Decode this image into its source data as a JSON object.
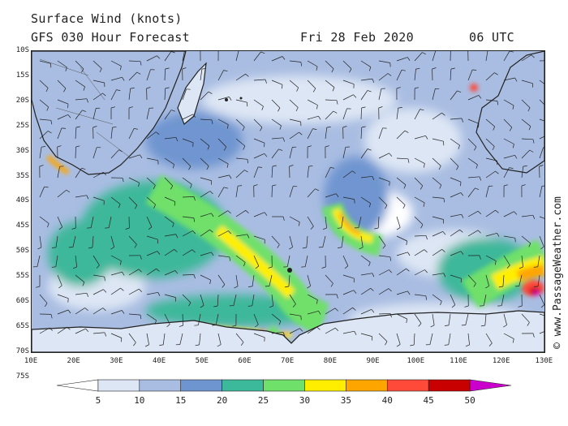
{
  "header": {
    "title": "Surface Wind (knots)",
    "subtitle": "GFS 030 Hour Forecast",
    "date": "Fri 28 Feb 2020",
    "time": "06 UTC"
  },
  "map": {
    "region": "Southern Indian Ocean",
    "lat_labels": [
      "10S",
      "15S",
      "20S",
      "25S",
      "30S",
      "35S",
      "40S",
      "45S",
      "50S",
      "55S",
      "60S",
      "65S",
      "70S",
      "75S"
    ],
    "lon_labels": [
      "10E",
      "20E",
      "30E",
      "40E",
      "50E",
      "60E",
      "70E",
      "80E",
      "90E",
      "100E",
      "110E",
      "120E",
      "130E"
    ],
    "lat_range": [
      -75,
      -10
    ],
    "lon_range": [
      10,
      130
    ]
  },
  "legend": {
    "values": [
      "5",
      "10",
      "15",
      "20",
      "25",
      "30",
      "35",
      "40",
      "45",
      "50"
    ],
    "colors": [
      "#ffffff",
      "#dde6f4",
      "#a9bde2",
      "#6f95d0",
      "#3cb89a",
      "#6fe06a",
      "#ffee00",
      "#ffa500",
      "#ff4a3a",
      "#c80000",
      "#cc00cc"
    ]
  },
  "credit": "© www.PassageWeather.com"
}
